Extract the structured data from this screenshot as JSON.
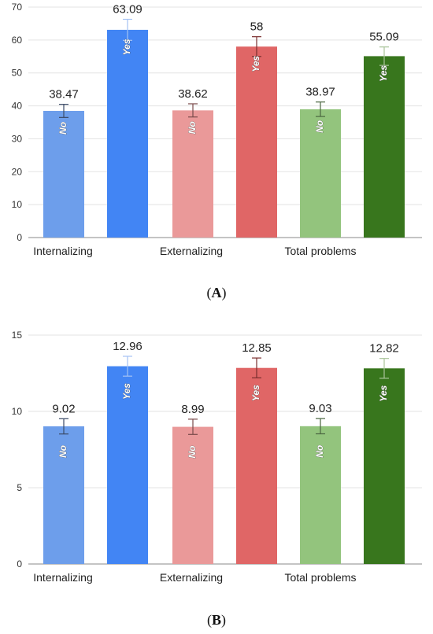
{
  "panels": [
    {
      "id": "A",
      "label": "A",
      "chart_data": {
        "type": "bar",
        "categories": [
          "Internalizing",
          "Externalizing",
          "Total problems"
        ],
        "series": [
          {
            "name": "No",
            "values": [
              38.47,
              38.62,
              38.97
            ],
            "errors": [
              2.0,
              2.0,
              2.2
            ]
          },
          {
            "name": "Yes",
            "values": [
              63.09,
              58,
              55.09
            ],
            "errors": [
              3.2,
              3.0,
              2.8
            ]
          }
        ],
        "bar_colors": [
          [
            "#6d9eeb",
            "#4285f4"
          ],
          [
            "#ea9999",
            "#e06666"
          ],
          [
            "#93c47d",
            "#38761d"
          ]
        ],
        "error_colors": [
          [
            "#3b4a66",
            "#a4c2f4"
          ],
          [
            "#7a4a4a",
            "#7a2e2e"
          ],
          [
            "#4a6640",
            "#a9c49a"
          ]
        ],
        "value_labels": [
          [
            "38.47",
            "63.09"
          ],
          [
            "38.62",
            "58"
          ],
          [
            "38.97",
            "55.09"
          ]
        ],
        "yticks": [
          "0",
          "10",
          "20",
          "30",
          "40",
          "50",
          "60",
          "70"
        ],
        "ylim": [
          0,
          70
        ],
        "grid": true
      }
    },
    {
      "id": "B",
      "label": "B",
      "chart_data": {
        "type": "bar",
        "categories": [
          "Internalizing",
          "Externalizing",
          "Total problems"
        ],
        "series": [
          {
            "name": "No",
            "values": [
              9.02,
              8.99,
              9.03
            ],
            "errors": [
              0.5,
              0.5,
              0.5
            ]
          },
          {
            "name": "Yes",
            "values": [
              12.96,
              12.85,
              12.82
            ],
            "errors": [
              0.65,
              0.65,
              0.65
            ]
          }
        ],
        "bar_colors": [
          [
            "#6d9eeb",
            "#4285f4"
          ],
          [
            "#ea9999",
            "#e06666"
          ],
          [
            "#93c47d",
            "#38761d"
          ]
        ],
        "error_colors": [
          [
            "#3b4a66",
            "#a4c2f4"
          ],
          [
            "#7a4a4a",
            "#7a2e2e"
          ],
          [
            "#4a6640",
            "#a9c49a"
          ]
        ],
        "value_labels": [
          [
            "9.02",
            "12.96"
          ],
          [
            "8.99",
            "12.85"
          ],
          [
            "9.03",
            "12.82"
          ]
        ],
        "yticks": [
          "0",
          "5",
          "10",
          "15"
        ],
        "ylim": [
          0,
          15
        ],
        "grid": true
      }
    }
  ]
}
